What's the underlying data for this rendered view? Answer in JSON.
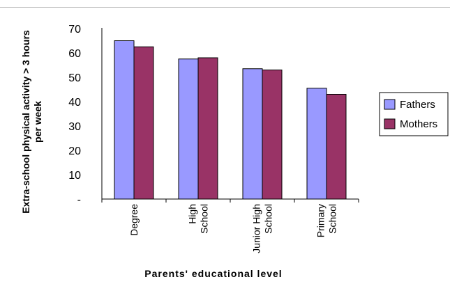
{
  "chart_data": {
    "type": "bar",
    "title": "",
    "xlabel": "Parents' educational level",
    "ylabel_lines": [
      "Extra-school physical activity > 3 hours",
      "per week"
    ],
    "ylim": [
      0,
      70
    ],
    "yticks": [
      {
        "value": 0,
        "label": "-"
      },
      {
        "value": 10,
        "label": "10"
      },
      {
        "value": 20,
        "label": "20"
      },
      {
        "value": 30,
        "label": "30"
      },
      {
        "value": 40,
        "label": "40"
      },
      {
        "value": 50,
        "label": "50"
      },
      {
        "value": 60,
        "label": "60"
      },
      {
        "value": 70,
        "label": "70"
      }
    ],
    "categories": [
      {
        "key": "Degree",
        "lines": [
          "Degree"
        ]
      },
      {
        "key": "High School",
        "lines": [
          "High",
          "School"
        ]
      },
      {
        "key": "Junior High School",
        "lines": [
          "Junior High",
          "School"
        ]
      },
      {
        "key": "Primary School",
        "lines": [
          "Primary",
          "School"
        ]
      }
    ],
    "series": [
      {
        "name": "Fathers",
        "color": "#9999ff",
        "values": [
          65,
          57.5,
          53.5,
          45.5
        ]
      },
      {
        "name": "Mothers",
        "color": "#993366",
        "values": [
          62.5,
          58,
          53,
          43
        ]
      }
    ],
    "legend_position": "right",
    "grid": false
  }
}
